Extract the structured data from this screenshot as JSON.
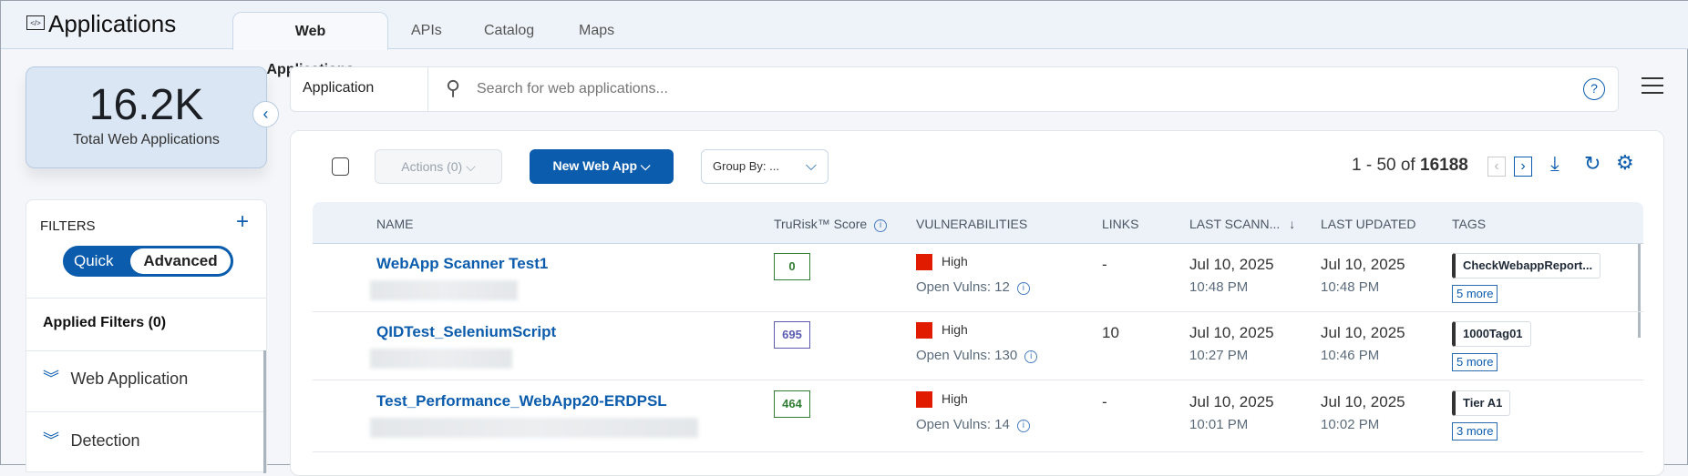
{
  "header": {
    "title": "Applications",
    "tabs": [
      "Web Applications",
      "APIs",
      "Catalog",
      "Maps"
    ]
  },
  "stat": {
    "value": "16.2K",
    "label": "Total Web Applications"
  },
  "filters": {
    "title": "FILTERS",
    "toggle": [
      "Quick",
      "Advanced"
    ],
    "applied": "Applied Filters (0)",
    "groups": [
      "Web Application",
      "Detection"
    ]
  },
  "search": {
    "scope": "Application",
    "placeholder": "Search for web applications..."
  },
  "toolbar": {
    "actions": "Actions (0)",
    "new": "New Web App",
    "group_by": "Group By: ...",
    "range": "1 - 50 of",
    "total": "16188"
  },
  "columns": [
    "NAME",
    "TruRisk™ Score",
    "VULNERABILITIES",
    "LINKS",
    "LAST SCANN...",
    "LAST UPDATED",
    "TAGS"
  ],
  "rows": [
    {
      "name": "WebApp Scanner Test1",
      "score": "0",
      "score_color": "#2e7d32",
      "severity": "High",
      "open_vulns": "Open Vulns: 12",
      "links": "-",
      "scanned_date": "Jul 10, 2025",
      "scanned_time": "10:48 PM",
      "updated_date": "Jul 10, 2025",
      "updated_time": "10:48 PM",
      "tag": "CheckWebappReport...",
      "more": "5 more"
    },
    {
      "name": "QIDTest_SeleniumScript",
      "score": "695",
      "score_color": "#5b5bb0",
      "severity": "High",
      "open_vulns": "Open Vulns: 130",
      "links": "10",
      "scanned_date": "Jul 10, 2025",
      "scanned_time": "10:27 PM",
      "updated_date": "Jul 10, 2025",
      "updated_time": "10:46 PM",
      "tag": "1000Tag01",
      "more": "5 more"
    },
    {
      "name": "Test_Performance_WebApp20-ERDPSL",
      "score": "464",
      "score_color": "#2e7d32",
      "severity": "High",
      "open_vulns": "Open Vulns: 14",
      "links": "-",
      "scanned_date": "Jul 10, 2025",
      "scanned_time": "10:01 PM",
      "updated_date": "Jul 10, 2025",
      "updated_time": "10:02 PM",
      "tag": "Tier A1",
      "more": "3 more"
    }
  ]
}
